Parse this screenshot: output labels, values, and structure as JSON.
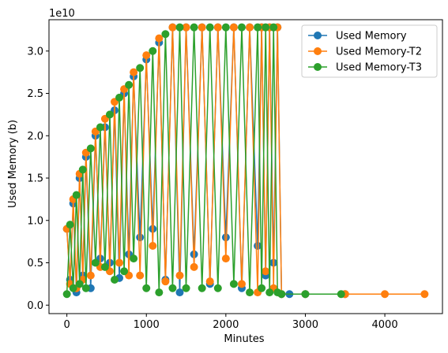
{
  "chart_data": {
    "type": "line",
    "xlabel": "Minutes",
    "ylabel": "Used Memory (b)",
    "offset_text": "1e10",
    "xlim": [
      -225,
      4725
    ],
    "ylim": [
      -0.1,
      3.37
    ],
    "y_scale": 10000000000.0,
    "x_ticks": [
      0,
      1000,
      2000,
      3000,
      4000
    ],
    "y_ticks": [
      0.0,
      0.5,
      1.0,
      1.5,
      2.0,
      2.5,
      3.0
    ],
    "x_tick_labels": [
      "0",
      "1000",
      "2000",
      "3000",
      "4000"
    ],
    "y_tick_labels": [
      "0.0",
      "0.5",
      "1.0",
      "1.5",
      "2.0",
      "2.5",
      "3.0"
    ],
    "legend_position": "top-right",
    "grid": false,
    "series": [
      {
        "name": "Used Memory",
        "color": "#1f77b4",
        "x": [
          0,
          40,
          80,
          120,
          160,
          200,
          240,
          300,
          360,
          420,
          480,
          540,
          600,
          660,
          720,
          780,
          840,
          920,
          1000,
          1080,
          1160,
          1240,
          1330,
          1420,
          1500,
          1600,
          1700,
          1800,
          1900,
          2000,
          2100,
          2200,
          2300,
          2400,
          2450,
          2500,
          2550,
          2600,
          2650,
          2700,
          2800,
          3000,
          3500
        ],
        "y": [
          0.9,
          0.3,
          1.2,
          0.15,
          1.5,
          0.35,
          1.75,
          0.2,
          2.0,
          0.55,
          2.1,
          0.5,
          2.3,
          0.32,
          2.5,
          0.6,
          2.7,
          0.8,
          2.9,
          0.9,
          3.1,
          0.3,
          3.28,
          0.15,
          3.28,
          0.6,
          3.28,
          0.25,
          3.28,
          0.8,
          3.28,
          0.2,
          3.28,
          0.7,
          3.28,
          0.35,
          3.28,
          0.5,
          3.28,
          0.13,
          0.13,
          0.13,
          0.13
        ]
      },
      {
        "name": "Used Memory-T2",
        "color": "#ff7f0e",
        "x": [
          0,
          40,
          80,
          120,
          160,
          200,
          240,
          300,
          360,
          420,
          480,
          540,
          600,
          660,
          720,
          780,
          840,
          920,
          1000,
          1080,
          1160,
          1240,
          1330,
          1420,
          1500,
          1600,
          1700,
          1800,
          1900,
          2000,
          2100,
          2200,
          2300,
          2400,
          2450,
          2500,
          2550,
          2600,
          2650,
          2700,
          3000,
          3500,
          4000,
          4500
        ],
        "y": [
          0.9,
          0.25,
          1.25,
          0.2,
          1.55,
          0.3,
          1.8,
          0.35,
          2.05,
          0.45,
          2.2,
          0.4,
          2.4,
          0.5,
          2.55,
          0.35,
          2.75,
          0.35,
          2.95,
          0.7,
          3.15,
          0.28,
          3.28,
          0.35,
          3.28,
          0.45,
          3.28,
          0.28,
          3.28,
          0.55,
          3.28,
          0.25,
          3.28,
          0.15,
          3.28,
          0.4,
          3.28,
          0.2,
          3.28,
          0.13,
          0.13,
          0.13,
          0.13,
          0.13
        ]
      },
      {
        "name": "Used Memory-T3",
        "color": "#2ca02c",
        "x": [
          0,
          40,
          80,
          120,
          160,
          200,
          240,
          300,
          360,
          420,
          480,
          540,
          600,
          660,
          720,
          780,
          840,
          920,
          1000,
          1080,
          1160,
          1240,
          1330,
          1420,
          1500,
          1600,
          1700,
          1800,
          1900,
          2000,
          2100,
          2200,
          2300,
          2400,
          2450,
          2500,
          2550,
          2600,
          2650,
          2700,
          3000,
          3450
        ],
        "y": [
          0.13,
          0.95,
          0.2,
          1.3,
          0.25,
          1.6,
          0.2,
          1.85,
          0.5,
          2.1,
          0.45,
          2.25,
          0.3,
          2.45,
          0.4,
          2.6,
          0.55,
          2.8,
          0.2,
          3.0,
          0.15,
          3.2,
          0.2,
          3.28,
          0.2,
          3.28,
          0.2,
          3.28,
          0.2,
          3.28,
          0.25,
          3.28,
          0.15,
          3.28,
          0.2,
          3.28,
          0.15,
          3.28,
          0.15,
          0.13,
          0.13,
          0.13
        ]
      }
    ]
  }
}
